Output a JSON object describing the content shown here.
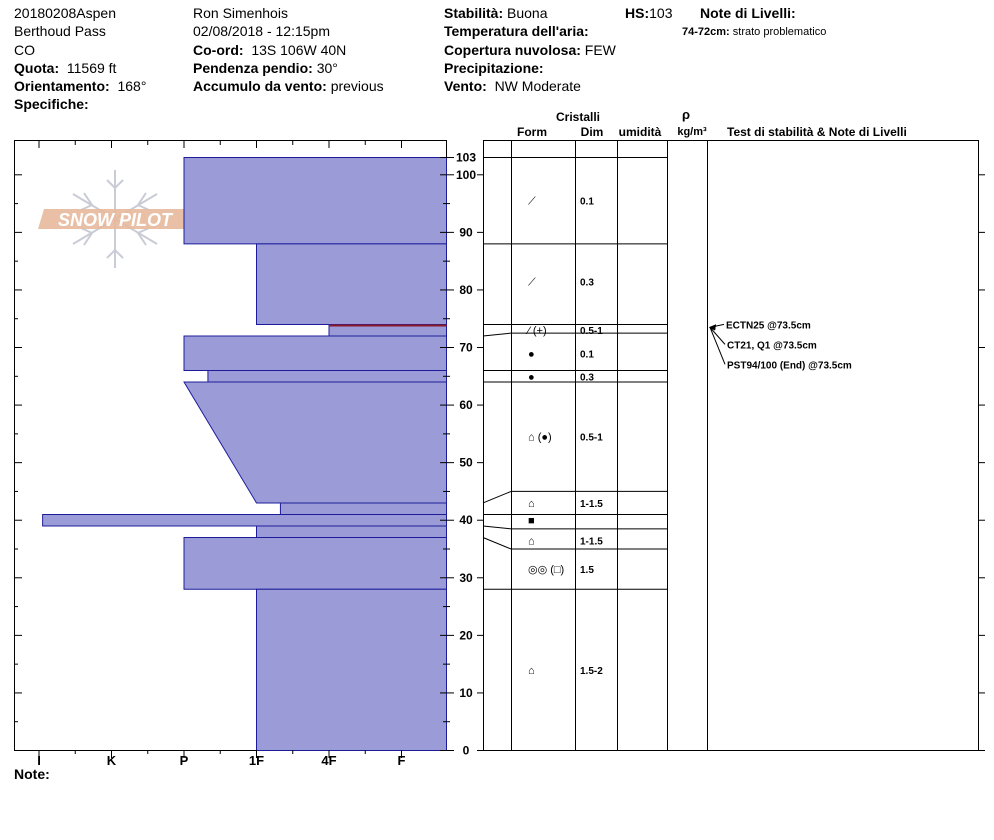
{
  "header": {
    "col1": [
      "20180208Aspen",
      "Berthoud Pass",
      "CO"
    ],
    "quota_label": "Quota:",
    "quota_value": "11569 ft",
    "orient_label": "Orientamento:",
    "orient_value": "168°",
    "spec_label": "Specifiche:",
    "observer": "Ron Simenhois",
    "datetime": "02/08/2018 - 12:15pm",
    "coord_label": "Co-ord:",
    "coord_value": "13S 106W 40N",
    "slope_label": "Pendenza pendio:",
    "slope_value": "30°",
    "wind_load_label": "Accumulo da vento:",
    "wind_load_value": "previous",
    "stability_label": "Stabilità:",
    "stability_value": "Buona",
    "air_temp_label": "Temperatura dell'aria:",
    "cloud_label": "Copertura nuvolosa:",
    "cloud_value": "FEW",
    "precip_label": "Precipitazione:",
    "wind_label": "Vento:",
    "wind_value": "NW Moderate",
    "hs_label": "HS:",
    "hs_value": "103",
    "layer_notes_label": "Note di Livelli:",
    "layer_note_depth": "74-72cm:",
    "layer_note_text": "strato problematico"
  },
  "footer": {
    "note_label": "Note:"
  },
  "logo": {
    "text": "SNOW PILOT"
  },
  "columns": {
    "crystals": "Cristalli",
    "form": "Form",
    "dim": "Dim",
    "humidity": "umidità",
    "rho": "ρ",
    "density_unit": "kg/m³",
    "tests": "Test di stabilità & Note di Livelli"
  },
  "chart_data": {
    "type": "bar",
    "title": "",
    "xlabel": "",
    "ylabel": "",
    "hardness_ticks": [
      "I",
      "K",
      "P",
      "1F",
      "4F",
      "F"
    ],
    "y_ticks": [
      0,
      10,
      20,
      30,
      40,
      50,
      60,
      70,
      80,
      90,
      100
    ],
    "top_tick": "103",
    "ylim": [
      0,
      103
    ],
    "hardness_scale": "0 = I ... 6 = right edge",
    "layers": [
      {
        "bottom": 88,
        "top": 103,
        "hardness": 2.0
      },
      {
        "bottom": 74,
        "top": 88,
        "hardness": 3.0
      },
      {
        "bottom": 72,
        "top": 74,
        "hardness": 4.0,
        "weak": true
      },
      {
        "bottom": 66,
        "top": 72,
        "hardness": 2.0
      },
      {
        "bottom": 64,
        "top": 66,
        "hardness": 2.33
      },
      {
        "bottom": 43,
        "top": 64,
        "hardness": 2.0,
        "hardness_bottom": 3.0
      },
      {
        "bottom": 41,
        "top": 43,
        "hardness": 3.33
      },
      {
        "bottom": 39,
        "top": 41,
        "hardness": 0.05
      },
      {
        "bottom": 37,
        "top": 39,
        "hardness": 3.0
      },
      {
        "bottom": 28,
        "top": 37,
        "hardness": 2.0
      },
      {
        "bottom": 0,
        "top": 28,
        "hardness": 3.0
      }
    ],
    "crystal_rows": [
      {
        "top": 103,
        "bottom": 88,
        "mid": 95.5,
        "form": "⟋",
        "size": "0.1"
      },
      {
        "top": 88,
        "bottom": 74,
        "mid": 81.5,
        "form": "⟋",
        "size": "0.3"
      },
      {
        "top": 74,
        "bottom": 72.5,
        "mid": 73,
        "form": "⁄ (+)",
        "size": "0.5-1"
      },
      {
        "top": 72.5,
        "bottom": 66,
        "mid": 69,
        "form": "●",
        "size": "0.1"
      },
      {
        "top": 66,
        "bottom": 64,
        "mid": 65,
        "form": "●",
        "size": "0.3"
      },
      {
        "top": 64,
        "bottom": 45,
        "mid": 54.5,
        "form": "⌂ (●)",
        "size": "0.5-1"
      },
      {
        "top": 45,
        "bottom": 41,
        "mid": 43,
        "form": "⌂",
        "size": "1-1.5"
      },
      {
        "top": 41,
        "bottom": 38.5,
        "mid": 40,
        "form": "■",
        "size": ""
      },
      {
        "top": 38.5,
        "bottom": 35,
        "mid": 36.5,
        "form": "⌂",
        "size": "1-1.5"
      },
      {
        "top": 35,
        "bottom": 28,
        "mid": 31.5,
        "form": "◎◎ (□)",
        "size": "1.5"
      },
      {
        "top": 28,
        "bottom": 0,
        "mid": 14,
        "form": "⌂",
        "size": "1.5-2"
      }
    ],
    "tests": [
      {
        "text": "ECTN25 @73.5cm",
        "depth": 73.5
      },
      {
        "text": "CT21, Q1 @73.5cm",
        "depth": 73.5
      },
      {
        "text": "PST94/100 (End) @73.5cm",
        "depth": 73.5
      }
    ],
    "colors": {
      "layer_fill": "#9b9bd8",
      "layer_stroke": "#1c1c9a",
      "weak_line": "#8b1a2a"
    }
  }
}
